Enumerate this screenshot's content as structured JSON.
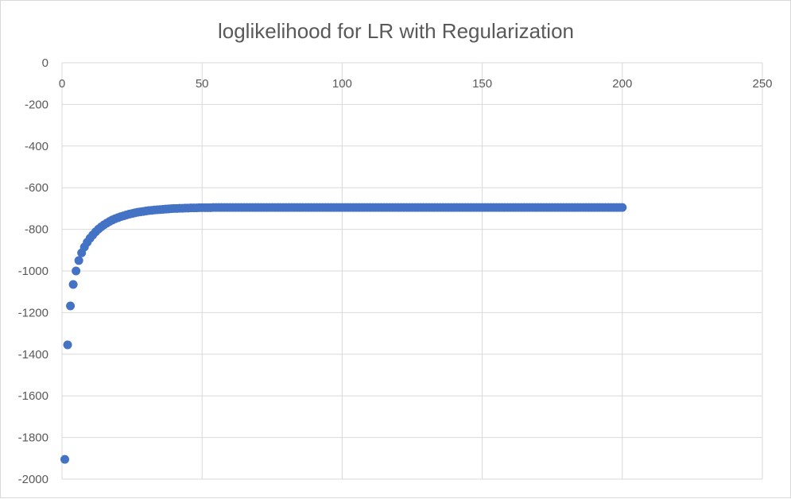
{
  "chart_data": {
    "type": "scatter",
    "title": "loglikelihood for LR with Regularization",
    "xlabel": "",
    "ylabel": "",
    "xlim": [
      0,
      250
    ],
    "ylim": [
      -2000,
      0
    ],
    "x_ticks": [
      0,
      50,
      100,
      150,
      200,
      250
    ],
    "y_ticks": [
      0,
      -200,
      -400,
      -600,
      -800,
      -1000,
      -1200,
      -1400,
      -1600,
      -1800,
      -2000
    ],
    "grid": true,
    "legend": "none",
    "marker_color": "#4472c4",
    "series": [
      {
        "x": [
          1,
          2,
          3,
          4,
          5,
          6,
          7,
          8,
          9,
          10,
          11,
          12,
          13,
          14,
          15,
          16,
          17,
          18,
          19,
          20,
          21,
          22,
          23,
          24,
          25,
          26,
          27,
          28,
          29,
          30,
          31,
          32,
          33,
          34,
          35,
          36,
          37,
          38,
          39,
          40,
          41,
          42,
          43,
          44,
          45,
          46,
          47,
          48,
          49,
          50,
          51,
          52,
          53,
          54,
          55,
          56,
          57,
          58,
          59,
          60,
          61,
          62,
          63,
          64,
          65,
          66,
          67,
          68,
          69,
          70,
          71,
          72,
          73,
          74,
          75,
          76,
          77,
          78,
          79,
          80,
          81,
          82,
          83,
          84,
          85,
          86,
          87,
          88,
          89,
          90,
          91,
          92,
          93,
          94,
          95,
          96,
          97,
          98,
          99,
          100,
          101,
          102,
          103,
          104,
          105,
          106,
          107,
          108,
          109,
          110,
          111,
          112,
          113,
          114,
          115,
          116,
          117,
          118,
          119,
          120,
          121,
          122,
          123,
          124,
          125,
          126,
          127,
          128,
          129,
          130,
          131,
          132,
          133,
          134,
          135,
          136,
          137,
          138,
          139,
          140,
          141,
          142,
          143,
          144,
          145,
          146,
          147,
          148,
          149,
          150,
          151,
          152,
          153,
          154,
          155,
          156,
          157,
          158,
          159,
          160,
          161,
          162,
          163,
          164,
          165,
          166,
          167,
          168,
          169,
          170,
          171,
          172,
          173,
          174,
          175,
          176,
          177,
          178,
          179,
          180,
          181,
          182,
          183,
          184,
          185,
          186,
          187,
          188,
          189,
          190,
          191,
          192,
          193,
          194,
          195,
          196,
          197,
          198,
          199,
          200
        ],
        "y": [
          -1905,
          -1355,
          -1168,
          -1065,
          -1000,
          -950,
          -913,
          -885,
          -862,
          -843,
          -827,
          -812,
          -799,
          -788,
          -778,
          -770,
          -762,
          -755,
          -749,
          -744,
          -739,
          -735,
          -731,
          -727,
          -724,
          -721,
          -718,
          -716,
          -714,
          -712,
          -710,
          -709,
          -707,
          -706,
          -705,
          -704,
          -703,
          -702,
          -701,
          -700,
          -700,
          -699,
          -699,
          -698,
          -698,
          -697,
          -697,
          -697,
          -696,
          -696,
          -696,
          -696,
          -696,
          -695,
          -695,
          -695,
          -695,
          -695,
          -695,
          -695,
          -695,
          -695,
          -695,
          -695,
          -695,
          -695,
          -695,
          -695,
          -695,
          -695,
          -695,
          -695,
          -695,
          -695,
          -695,
          -695,
          -695,
          -695,
          -695,
          -695,
          -695,
          -695,
          -695,
          -695,
          -695,
          -695,
          -695,
          -695,
          -695,
          -695,
          -695,
          -695,
          -695,
          -695,
          -695,
          -695,
          -695,
          -695,
          -695,
          -695,
          -695,
          -695,
          -695,
          -695,
          -695,
          -695,
          -695,
          -695,
          -695,
          -695,
          -695,
          -695,
          -695,
          -695,
          -695,
          -695,
          -695,
          -695,
          -695,
          -695,
          -695,
          -695,
          -695,
          -695,
          -695,
          -695,
          -695,
          -695,
          -695,
          -695,
          -695,
          -695,
          -695,
          -695,
          -695,
          -695,
          -695,
          -695,
          -695,
          -695,
          -695,
          -695,
          -695,
          -695,
          -695,
          -695,
          -695,
          -695,
          -695,
          -695,
          -695,
          -695,
          -695,
          -695,
          -695,
          -695,
          -695,
          -695,
          -695,
          -695,
          -695,
          -695,
          -695,
          -695,
          -695,
          -695,
          -695,
          -695,
          -695,
          -695,
          -695,
          -695,
          -695,
          -695,
          -695,
          -695,
          -695,
          -695,
          -695,
          -695,
          -695,
          -695,
          -695,
          -695,
          -695,
          -695,
          -695,
          -695,
          -695,
          -695,
          -695,
          -695,
          -695,
          -695,
          -695,
          -695,
          -695,
          -695,
          -695,
          -695
        ]
      }
    ]
  }
}
